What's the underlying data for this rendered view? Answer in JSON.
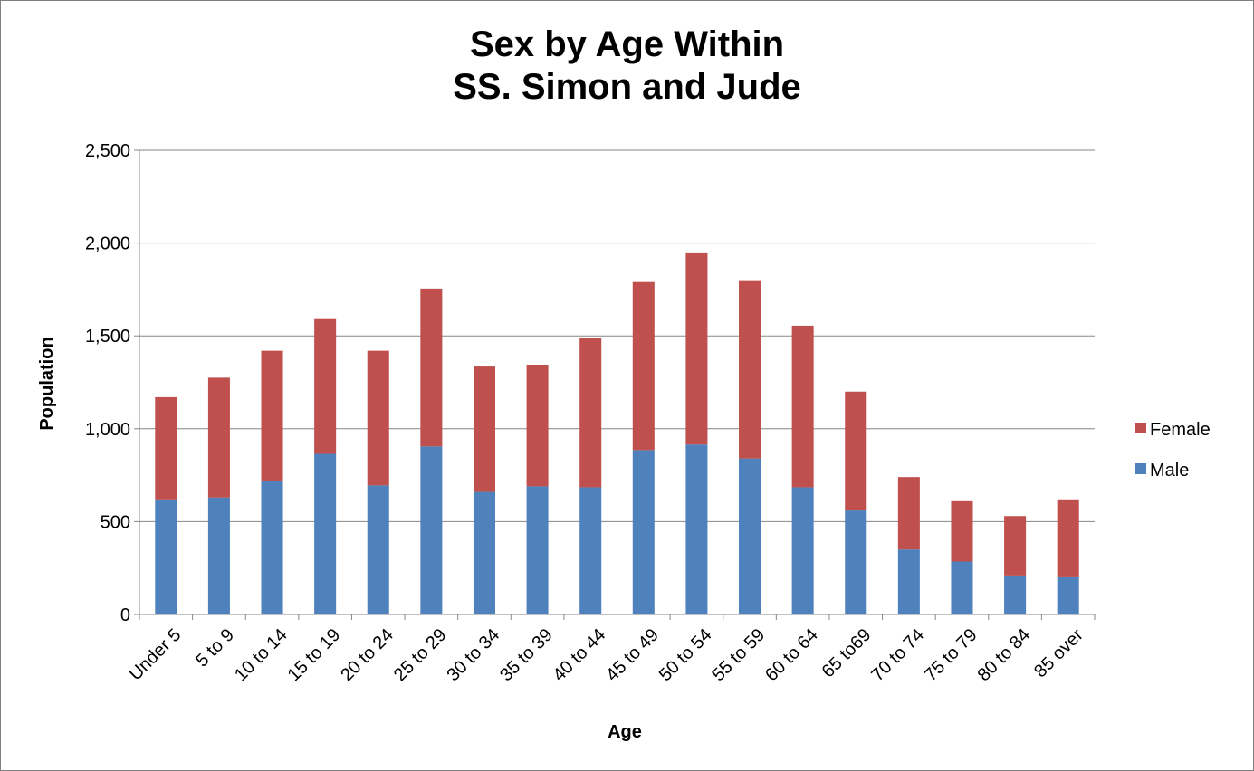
{
  "chart_data": {
    "type": "bar",
    "stacked": true,
    "title_lines": [
      "Sex by Age Within",
      "SS. Simon and Jude"
    ],
    "xlabel": "Age",
    "ylabel": "Population",
    "ylim": [
      0,
      2500
    ],
    "yticks": [
      0,
      500,
      1000,
      1500,
      2000,
      2500
    ],
    "ytick_labels": [
      "0",
      "500",
      "1,000",
      "1,500",
      "2,000",
      "2,500"
    ],
    "grid": true,
    "legend_position": "right",
    "categories": [
      "Under 5",
      "5 to 9",
      "10 to 14",
      "15 to 19",
      "20 to 24",
      "25 to 29",
      "30 to 34",
      "35 to 39",
      "40 to 44",
      "45 to 49",
      "50 to 54",
      "55 to 59",
      "60 to 64",
      "65 to69",
      "70 to 74",
      "75 to 79",
      "80 to 84",
      "85 over"
    ],
    "series": [
      {
        "name": "Male",
        "color": "#4f81bd",
        "values": [
          620,
          630,
          720,
          865,
          695,
          905,
          660,
          690,
          685,
          885,
          915,
          840,
          685,
          560,
          350,
          285,
          210,
          200
        ]
      },
      {
        "name": "Female",
        "color": "#c0504d",
        "values": [
          550,
          645,
          700,
          730,
          725,
          850,
          675,
          655,
          805,
          905,
          1030,
          960,
          870,
          640,
          390,
          325,
          320,
          420
        ]
      }
    ],
    "legend_order": [
      "Female",
      "Male"
    ]
  }
}
